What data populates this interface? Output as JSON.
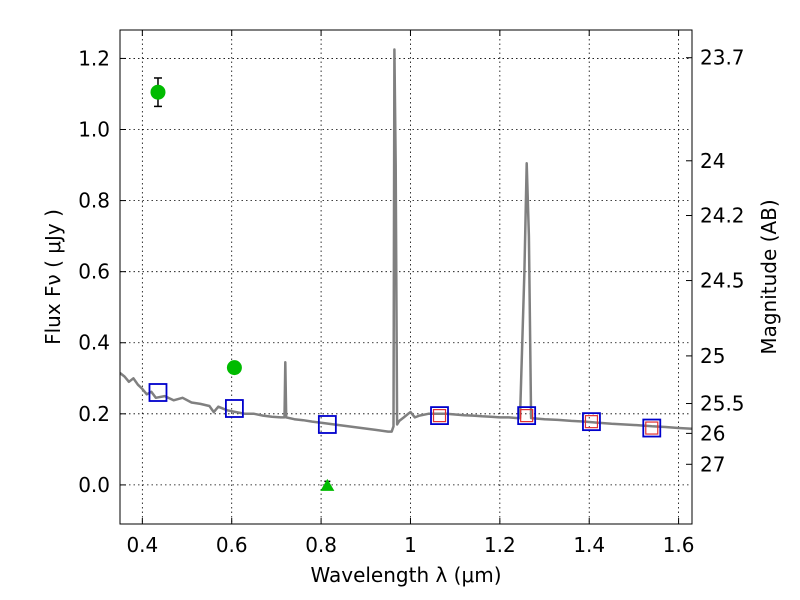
{
  "chart_data": {
    "type": "scatter",
    "xlabel": "Wavelength  λ (μm)",
    "ylabel": "Flux  Fν  ( μJy )",
    "y2label": "Magnitude (AB)",
    "xlim": [
      0.35,
      1.63
    ],
    "ylim": [
      -0.11,
      1.28
    ],
    "grid": true,
    "x_ticks": [
      {
        "v": 0.4,
        "label": "0.4"
      },
      {
        "v": 0.6,
        "label": "0.6"
      },
      {
        "v": 0.8,
        "label": "0.8"
      },
      {
        "v": 1.0,
        "label": "1"
      },
      {
        "v": 1.2,
        "label": "1.2"
      },
      {
        "v": 1.4,
        "label": "1.4"
      },
      {
        "v": 1.6,
        "label": "1.6"
      }
    ],
    "y_ticks": [
      {
        "v": 0.0,
        "label": "0.0"
      },
      {
        "v": 0.2,
        "label": "0.2"
      },
      {
        "v": 0.4,
        "label": "0.4"
      },
      {
        "v": 0.6,
        "label": "0.6"
      },
      {
        "v": 0.8,
        "label": "0.8"
      },
      {
        "v": 1.0,
        "label": "1.0"
      },
      {
        "v": 1.2,
        "label": "1.2"
      }
    ],
    "y2_ticks": [
      {
        "flux": 1.202,
        "label": "23.7"
      },
      {
        "flux": 0.912,
        "label": "24"
      },
      {
        "flux": 0.758,
        "label": "24.2"
      },
      {
        "flux": 0.575,
        "label": "24.5"
      },
      {
        "flux": 0.363,
        "label": "25"
      },
      {
        "flux": 0.229,
        "label": "25.5"
      },
      {
        "flux": 0.145,
        "label": "26"
      },
      {
        "flux": 0.058,
        "label": "27"
      }
    ],
    "series": [
      {
        "kind": "spectrum",
        "color": "#808080",
        "points": [
          [
            0.35,
            0.315
          ],
          [
            0.36,
            0.305
          ],
          [
            0.37,
            0.29
          ],
          [
            0.38,
            0.3
          ],
          [
            0.39,
            0.282
          ],
          [
            0.4,
            0.27
          ],
          [
            0.41,
            0.255
          ],
          [
            0.42,
            0.262
          ],
          [
            0.43,
            0.245
          ],
          [
            0.45,
            0.25
          ],
          [
            0.47,
            0.238
          ],
          [
            0.49,
            0.245
          ],
          [
            0.51,
            0.232
          ],
          [
            0.53,
            0.228
          ],
          [
            0.55,
            0.222
          ],
          [
            0.56,
            0.205
          ],
          [
            0.57,
            0.22
          ],
          [
            0.59,
            0.21
          ],
          [
            0.61,
            0.205
          ],
          [
            0.63,
            0.2
          ],
          [
            0.65,
            0.2
          ],
          [
            0.67,
            0.195
          ],
          [
            0.69,
            0.192
          ],
          [
            0.71,
            0.19
          ],
          [
            0.718,
            0.19
          ],
          [
            0.72,
            0.345
          ],
          [
            0.722,
            0.19
          ],
          [
            0.74,
            0.185
          ],
          [
            0.76,
            0.182
          ],
          [
            0.78,
            0.178
          ],
          [
            0.8,
            0.175
          ],
          [
            0.83,
            0.17
          ],
          [
            0.86,
            0.165
          ],
          [
            0.89,
            0.16
          ],
          [
            0.92,
            0.155
          ],
          [
            0.95,
            0.15
          ],
          [
            0.958,
            0.15
          ],
          [
            0.962,
            0.165
          ],
          [
            0.964,
            1.225
          ],
          [
            0.967,
            0.9
          ],
          [
            0.97,
            0.17
          ],
          [
            0.975,
            0.18
          ],
          [
            0.985,
            0.19
          ],
          [
            0.995,
            0.2
          ],
          [
            1.0,
            0.205
          ],
          [
            1.01,
            0.19
          ],
          [
            1.02,
            0.195
          ],
          [
            1.04,
            0.2
          ],
          [
            1.06,
            0.2
          ],
          [
            1.08,
            0.2
          ],
          [
            1.1,
            0.198
          ],
          [
            1.12,
            0.196
          ],
          [
            1.14,
            0.195
          ],
          [
            1.16,
            0.193
          ],
          [
            1.18,
            0.192
          ],
          [
            1.2,
            0.19
          ],
          [
            1.22,
            0.19
          ],
          [
            1.24,
            0.188
          ],
          [
            1.245,
            0.188
          ],
          [
            1.255,
            0.6
          ],
          [
            1.26,
            0.905
          ],
          [
            1.265,
            0.7
          ],
          [
            1.27,
            0.188
          ],
          [
            1.3,
            0.185
          ],
          [
            1.33,
            0.183
          ],
          [
            1.36,
            0.18
          ],
          [
            1.39,
            0.178
          ],
          [
            1.42,
            0.175
          ],
          [
            1.45,
            0.172
          ],
          [
            1.48,
            0.17
          ],
          [
            1.51,
            0.168
          ],
          [
            1.54,
            0.165
          ],
          [
            1.57,
            0.163
          ],
          [
            1.6,
            0.16
          ],
          [
            1.63,
            0.158
          ]
        ]
      },
      {
        "kind": "model_photometry",
        "marker": "square",
        "color": "#0000cc",
        "points": [
          [
            0.435,
            0.26
          ],
          [
            0.606,
            0.215
          ],
          [
            0.814,
            0.17
          ],
          [
            1.065,
            0.195
          ],
          [
            1.26,
            0.195
          ],
          [
            1.405,
            0.178
          ],
          [
            1.54,
            0.16
          ]
        ]
      },
      {
        "kind": "inner_squares",
        "marker": "square",
        "color": "#e03030",
        "points": [
          [
            1.065,
            0.195
          ],
          [
            1.26,
            0.195
          ],
          [
            1.405,
            0.178
          ],
          [
            1.54,
            0.16
          ]
        ]
      },
      {
        "kind": "observed",
        "marker": "circle",
        "color": "#00bb00",
        "points": [
          {
            "x": 0.435,
            "y": 1.105,
            "err": 0.04
          },
          {
            "x": 0.606,
            "y": 0.33,
            "err": 0.015
          }
        ]
      },
      {
        "kind": "upper_limit",
        "marker": "triangle",
        "color": "#00bb00",
        "points": [
          {
            "x": 0.814,
            "y": 0.0,
            "err": 0.01
          }
        ]
      }
    ]
  }
}
